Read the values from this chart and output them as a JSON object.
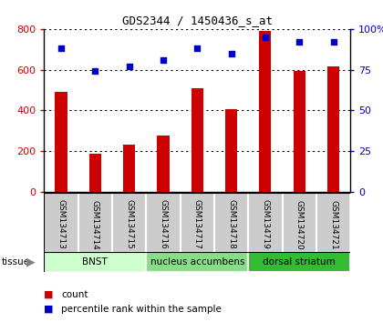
{
  "title": "GDS2344 / 1450436_s_at",
  "samples": [
    "GSM134713",
    "GSM134714",
    "GSM134715",
    "GSM134716",
    "GSM134717",
    "GSM134718",
    "GSM134719",
    "GSM134720",
    "GSM134721"
  ],
  "counts": [
    490,
    185,
    230,
    275,
    510,
    405,
    790,
    595,
    615
  ],
  "percentiles": [
    88,
    74,
    77,
    81,
    88,
    85,
    95,
    92,
    92
  ],
  "tissue_groups": [
    {
      "label": "BNST",
      "start": 0,
      "end": 3,
      "color": "#ccffcc"
    },
    {
      "label": "nucleus accumbens",
      "start": 3,
      "end": 6,
      "color": "#88dd88"
    },
    {
      "label": "dorsal striatum",
      "start": 6,
      "end": 9,
      "color": "#33bb33"
    }
  ],
  "bar_color": "#cc0000",
  "dot_color": "#0000cc",
  "ylim_left": [
    0,
    800
  ],
  "ylim_right": [
    0,
    100
  ],
  "yticks_left": [
    0,
    200,
    400,
    600,
    800
  ],
  "yticks_right": [
    0,
    25,
    50,
    75,
    100
  ],
  "yticklabels_right": [
    "0",
    "25",
    "50",
    "75",
    "100%"
  ],
  "plot_bg": "#ffffff",
  "grid_color": "#000000",
  "left_tick_color": "#cc0000",
  "right_tick_color": "#0000cc"
}
